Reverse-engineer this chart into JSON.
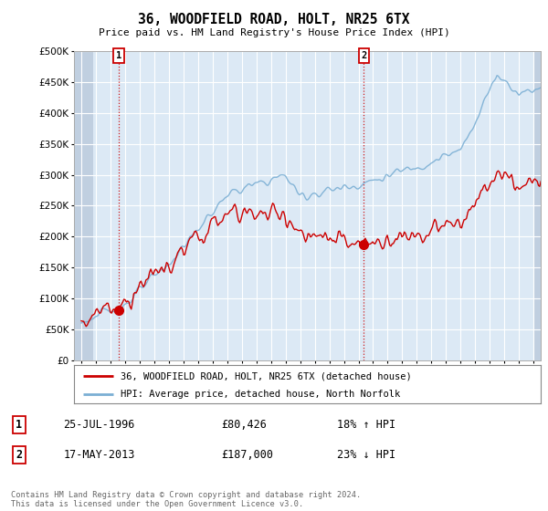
{
  "title": "36, WOODFIELD ROAD, HOLT, NR25 6TX",
  "subtitle": "Price paid vs. HM Land Registry's House Price Index (HPI)",
  "ylim": [
    0,
    500000
  ],
  "yticks": [
    0,
    50000,
    100000,
    150000,
    200000,
    250000,
    300000,
    350000,
    400000,
    450000,
    500000
  ],
  "hpi_color": "#7bafd4",
  "price_color": "#cc0000",
  "sale1": {
    "date_num": 1996.57,
    "price": 80426,
    "label": "1",
    "date_str": "25-JUL-1996",
    "amount": "£80,426",
    "hpi_rel": "18% ↑ HPI"
  },
  "sale2": {
    "date_num": 2013.37,
    "price": 187000,
    "label": "2",
    "date_str": "17-MAY-2013",
    "amount": "£187,000",
    "hpi_rel": "23% ↓ HPI"
  },
  "legend_line1": "36, WOODFIELD ROAD, HOLT, NR25 6TX (detached house)",
  "legend_line2": "HPI: Average price, detached house, North Norfolk",
  "footnote": "Contains HM Land Registry data © Crown copyright and database right 2024.\nThis data is licensed under the Open Government Licence v3.0.",
  "background_color": "#ffffff",
  "plot_bg_color": "#dce9f5",
  "grid_color": "#ffffff",
  "hatch_color": "#c0cfe0",
  "xmin": 1993.5,
  "xmax": 2025.5
}
